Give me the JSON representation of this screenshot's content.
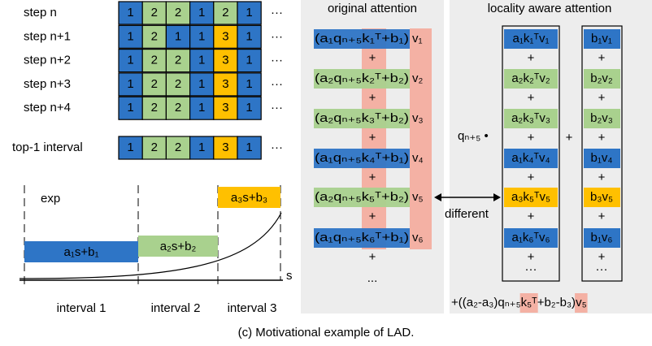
{
  "steps": {
    "rows": [
      {
        "label": "step n",
        "cells": [
          1,
          2,
          2,
          1,
          2,
          1
        ]
      },
      {
        "label": "step n+1",
        "cells": [
          1,
          2,
          1,
          1,
          3,
          1
        ]
      },
      {
        "label": "step n+2",
        "cells": [
          1,
          2,
          2,
          1,
          3,
          1
        ]
      },
      {
        "label": "step n+3",
        "cells": [
          1,
          2,
          2,
          1,
          3,
          1
        ]
      },
      {
        "label": "step n+4",
        "cells": [
          1,
          2,
          2,
          1,
          3,
          1
        ]
      }
    ],
    "top1": {
      "label": "top-1 interval",
      "cells": [
        1,
        2,
        2,
        1,
        3,
        1
      ]
    },
    "ellipsis": "···",
    "colors": {
      "1": "#2e75c6",
      "2": "#a9d18e",
      "3": "#ffc000"
    }
  },
  "intervals": {
    "curve_label": "exp",
    "axis_label": "s",
    "pieces": [
      {
        "formula": "a₁s+b₁",
        "label": "interval 1",
        "color": "#2e75c6"
      },
      {
        "formula": "a₂s+b₂",
        "label": "interval 2",
        "color": "#a9d18e"
      },
      {
        "formula": "a₃s+b₃",
        "label": "interval 3",
        "color": "#ffc000"
      }
    ]
  },
  "original": {
    "title": "original attention",
    "terms": [
      {
        "body": "(a₁qₙ₊₅k₁ᵀ+b₁)",
        "v": "v₁",
        "color": "#2e75c6"
      },
      {
        "body": "(a₂qₙ₊₅k₂ᵀ+b₂)",
        "v": "v₂",
        "color": "#a9d18e"
      },
      {
        "body": "(a₂qₙ₊₅k₃ᵀ+b₂)",
        "v": "v₃",
        "color": "#a9d18e"
      },
      {
        "body": "(a₁qₙ₊₅k₄ᵀ+b₁)",
        "v": "v₄",
        "color": "#2e75c6"
      },
      {
        "body": "(a₂qₙ₊₅k₅ᵀ+b₂)",
        "v": "v₅",
        "color": "#a9d18e"
      },
      {
        "body": "(a₁qₙ₊₅k₆ᵀ+b₁)",
        "v": "v₆",
        "color": "#2e75c6"
      }
    ],
    "plus": "+",
    "more": "..."
  },
  "locality": {
    "title": "locality aware attention",
    "rows": [
      {
        "left": "a₁k₁ᵀv₁",
        "right": "b₁v₁",
        "color": "#2e75c6"
      },
      {
        "left": "a₂k₂ᵀv₂",
        "right": "b₂v₂",
        "color": "#a9d18e"
      },
      {
        "left": "a₂k₃ᵀv₃",
        "right": "b₂v₃",
        "color": "#a9d18e"
      },
      {
        "left": "a₁k₄ᵀv₄",
        "right": "b₁v₄",
        "color": "#2e75c6"
      },
      {
        "left": "a₃k₅ᵀv₅",
        "right": "b₃v₅",
        "color": "#ffc000"
      },
      {
        "left": "a₁k₆ᵀv₆",
        "right": "b₁v₆",
        "color": "#2e75c6"
      }
    ],
    "query": "qₙ₊₅ •",
    "plus": "+",
    "more": "···",
    "correction": [
      {
        "text": "+((a₂-a₃)qₙ₊₅",
        "highlight": false
      },
      {
        "text": "k₅ᵀ",
        "highlight": true
      },
      {
        "text": "+b₂-b₃)",
        "highlight": false
      },
      {
        "text": "v₅",
        "highlight": true
      }
    ]
  },
  "arrow_label": "different",
  "caption": "(c) Motivational example of LAD."
}
